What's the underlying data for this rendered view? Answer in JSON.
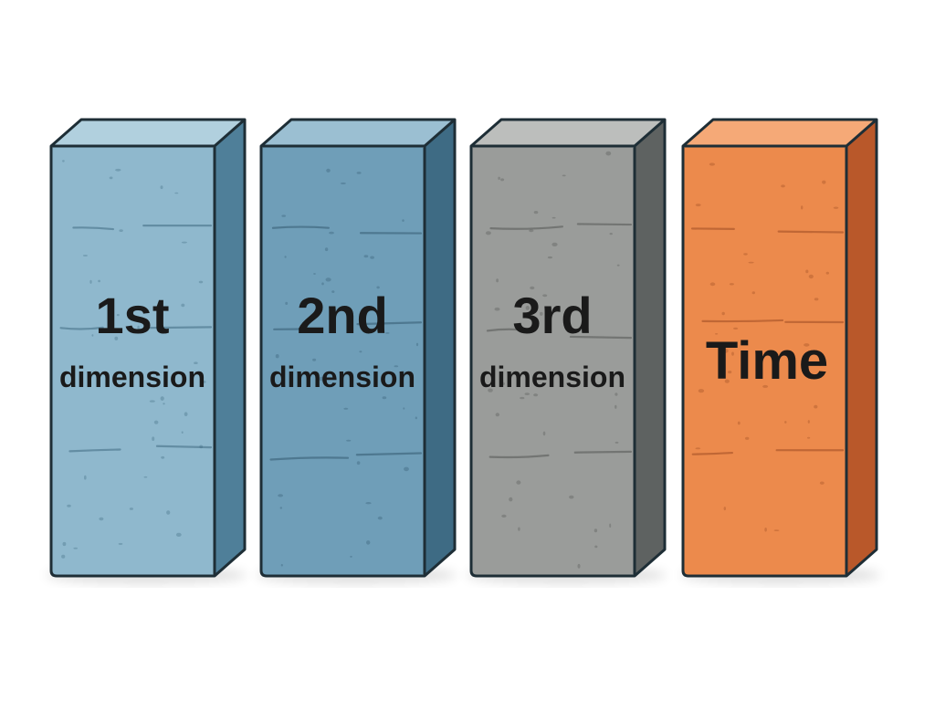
{
  "blocks": [
    {
      "line1": "1st",
      "line2": "dimension",
      "colors": {
        "front": "#8fb8cd",
        "side": "#4f7f99",
        "top": "#b1d0de",
        "detail": "#3f6a82"
      }
    },
    {
      "line1": "2nd",
      "line2": "dimension",
      "colors": {
        "front": "#6f9eb8",
        "side": "#3e6b84",
        "top": "#9bbfd2",
        "detail": "#335a70"
      }
    },
    {
      "line1": "3rd",
      "line2": "dimension",
      "colors": {
        "front": "#9a9c9a",
        "side": "#5e6261",
        "top": "#bcbebc",
        "detail": "#535654"
      }
    },
    {
      "line1": "",
      "line2": "Time",
      "colors": {
        "front": "#ec8a4c",
        "side": "#b9582a",
        "top": "#f5a977",
        "detail": "#9c4a22"
      }
    }
  ]
}
